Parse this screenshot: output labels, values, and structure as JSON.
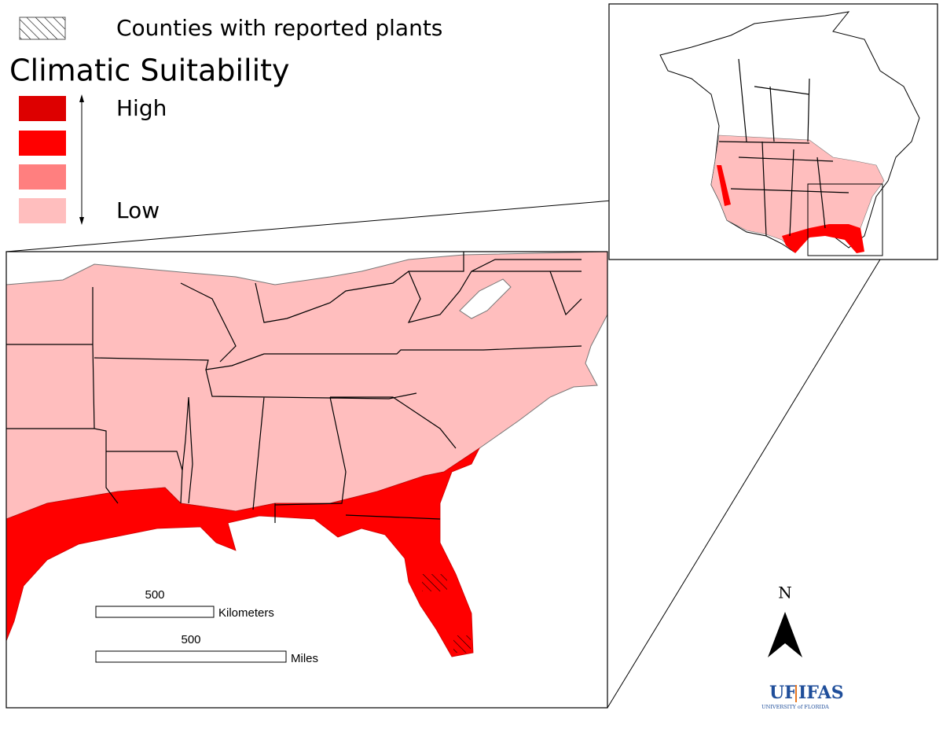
{
  "legend": {
    "hatch_label": "Counties with reported plants",
    "title": "Climatic Suitability",
    "high": "High",
    "low": "Low"
  },
  "scale_bars": [
    {
      "value": "500",
      "unit": "Kilometers"
    },
    {
      "value": "500",
      "unit": "Miles"
    }
  ],
  "north_arrow": {
    "label": "N"
  },
  "logo": {
    "uf": "UF",
    "ifas": "IFAS",
    "subtitle": "UNIVERSITY of FLORIDA"
  }
}
